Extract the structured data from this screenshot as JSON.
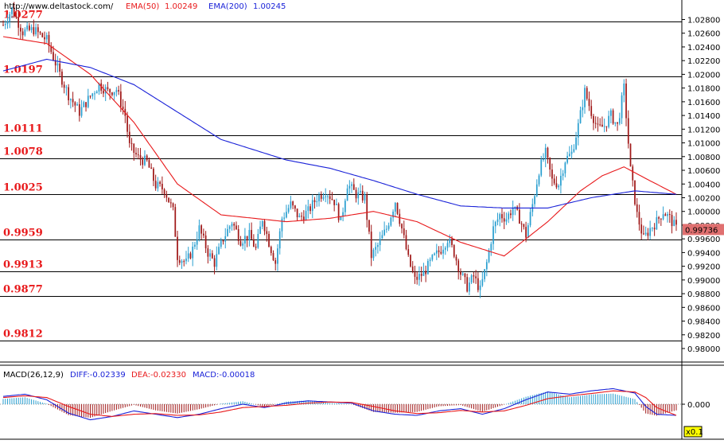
{
  "header": {
    "url": "http://www.deltastock.com/",
    "ema50_label": "EMA(50)",
    "ema50_value": "1.00249",
    "ema200_label": "EMA(200)",
    "ema200_value": "1.00245"
  },
  "macd_header": {
    "name": "MACD(26,12,9)",
    "diff": "DIFF:-0.02339",
    "dea": "DEA:-0.02330",
    "macd": "MACD:-0.00018"
  },
  "zoom_label": "x0.1",
  "colors": {
    "candle_up": "#2a9fd0",
    "candle_down": "#a01818",
    "ema50": "#e8191b",
    "ema200": "#1a22d8",
    "level_label": "#e8191b",
    "header_red": "#e8191b",
    "header_blue": "#1a22d8",
    "current_price_box": "#e07070"
  },
  "chart_data": {
    "type": "candlestick",
    "y_axis": {
      "min": 0.978,
      "max": 1.0295,
      "tick_labels": [
        "1.02800",
        "1.02600",
        "1.02400",
        "1.02200",
        "1.02000",
        "1.01800",
        "1.01600",
        "1.01400",
        "1.01200",
        "1.01000",
        "1.00800",
        "1.00600",
        "1.00400",
        "1.00200",
        "1.00000",
        "0.99800",
        "0.99600",
        "0.99400",
        "0.99200",
        "0.99000",
        "0.98800",
        "0.98600",
        "0.98400",
        "0.98200",
        "0.98000"
      ]
    },
    "current_price": "0.99736",
    "levels": [
      {
        "label": "1.0277",
        "value": 1.0277
      },
      {
        "label": "1.0197",
        "value": 1.0197
      },
      {
        "label": "1.0111",
        "value": 1.0111
      },
      {
        "label": "1.0078",
        "value": 1.0078
      },
      {
        "label": "1.0025",
        "value": 1.0025
      },
      {
        "label": "0.9959",
        "value": 0.9959
      },
      {
        "label": "0.9913",
        "value": 0.9913
      },
      {
        "label": "0.9877",
        "value": 0.9877
      },
      {
        "label": "0.9812",
        "value": 0.9812
      }
    ],
    "close_path": [
      [
        0,
        1.0272
      ],
      [
        4,
        1.0295
      ],
      [
        9,
        1.0262
      ],
      [
        14,
        1.0265
      ],
      [
        20,
        1.025
      ],
      [
        26,
        1.02
      ],
      [
        30,
        1.017
      ],
      [
        35,
        1.0145
      ],
      [
        40,
        1.0168
      ],
      [
        44,
        1.0185
      ],
      [
        48,
        1.0175
      ],
      [
        52,
        1.0178
      ],
      [
        56,
        1.014
      ],
      [
        58,
        1.0095
      ],
      [
        62,
        1.0078
      ],
      [
        66,
        1.0072
      ],
      [
        70,
        1.0038
      ],
      [
        74,
        1.0032
      ],
      [
        78,
        1.0
      ],
      [
        80,
        0.9935
      ],
      [
        84,
        0.9925
      ],
      [
        87,
        0.9945
      ],
      [
        90,
        0.9975
      ],
      [
        94,
        0.994
      ],
      [
        97,
        0.9925
      ],
      [
        101,
        0.996
      ],
      [
        105,
        0.9985
      ],
      [
        109,
        0.9958
      ],
      [
        113,
        0.9965
      ],
      [
        116,
        0.9945
      ],
      [
        119,
        0.999
      ],
      [
        122,
        0.9955
      ],
      [
        125,
        0.9925
      ],
      [
        128,
        0.999
      ],
      [
        132,
        1.001
      ],
      [
        136,
        0.999
      ],
      [
        140,
        1.0
      ],
      [
        144,
        1.002
      ],
      [
        148,
        1.003
      ],
      [
        152,
        1.0015
      ],
      [
        155,
        0.9985
      ],
      [
        158,
        1.004
      ],
      [
        162,
        1.0025
      ],
      [
        166,
        1.002
      ],
      [
        169,
        0.9935
      ],
      [
        172,
        0.995
      ],
      [
        176,
        0.9975
      ],
      [
        180,
        1.0015
      ],
      [
        183,
        0.9975
      ],
      [
        186,
        0.993
      ],
      [
        189,
        0.99
      ],
      [
        193,
        0.991
      ],
      [
        197,
        0.993
      ],
      [
        201,
        0.9945
      ],
      [
        204,
        0.996
      ],
      [
        207,
        0.994
      ],
      [
        210,
        0.991
      ],
      [
        213,
        0.989
      ],
      [
        216,
        0.9905
      ],
      [
        219,
        0.9885
      ],
      [
        222,
        0.9925
      ],
      [
        225,
        0.9975
      ],
      [
        228,
        0.9995
      ],
      [
        231,
        0.999
      ],
      [
        234,
        1.0005
      ],
      [
        237,
        0.999
      ],
      [
        240,
        0.9965
      ],
      [
        243,
        1.001
      ],
      [
        246,
        1.006
      ],
      [
        249,
        1.0085
      ],
      [
        252,
        1.0045
      ],
      [
        255,
        1.004
      ],
      [
        258,
        1.0075
      ],
      [
        261,
        1.0085
      ],
      [
        264,
        1.0125
      ],
      [
        267,
        1.0175
      ],
      [
        270,
        1.0145
      ],
      [
        273,
        1.012
      ],
      [
        276,
        1.0125
      ],
      [
        279,
        1.014
      ],
      [
        282,
        1.0125
      ],
      [
        285,
        1.018
      ],
      [
        288,
        1.006
      ],
      [
        291,
        0.9995
      ],
      [
        294,
        0.996
      ],
      [
        297,
        0.9975
      ],
      [
        300,
        0.9985
      ],
      [
        303,
        1.0
      ],
      [
        306,
        0.999
      ],
      [
        309,
        0.9975
      ]
    ],
    "series": [
      {
        "name": "EMA(50)",
        "values": [
          [
            0,
            1.0255
          ],
          [
            20,
            1.0245
          ],
          [
            40,
            1.02
          ],
          [
            60,
            1.013
          ],
          [
            80,
            1.004
          ],
          [
            100,
            0.9995
          ],
          [
            130,
            0.9985
          ],
          [
            150,
            0.999
          ],
          [
            170,
            1.0
          ],
          [
            190,
            0.9985
          ],
          [
            210,
            0.9955
          ],
          [
            230,
            0.9935
          ],
          [
            250,
            0.9985
          ],
          [
            265,
            1.003
          ],
          [
            275,
            1.0052
          ],
          [
            285,
            1.0065
          ],
          [
            295,
            1.0048
          ],
          [
            309,
            1.0025
          ]
        ]
      },
      {
        "name": "EMA(200)",
        "values": [
          [
            0,
            1.0205
          ],
          [
            20,
            1.0222
          ],
          [
            40,
            1.021
          ],
          [
            60,
            1.0185
          ],
          [
            80,
            1.0145
          ],
          [
            100,
            1.0105
          ],
          [
            130,
            1.0075
          ],
          [
            150,
            1.0063
          ],
          [
            170,
            1.0045
          ],
          [
            190,
            1.0025
          ],
          [
            210,
            1.0008
          ],
          [
            230,
            1.0005
          ],
          [
            250,
            1.0005
          ],
          [
            270,
            1.002
          ],
          [
            290,
            1.003
          ],
          [
            309,
            1.0025
          ]
        ]
      }
    ],
    "macd_panel": {
      "zero_label": "0.000",
      "diff_series": [
        [
          0,
          0.35
        ],
        [
          10,
          0.45
        ],
        [
          20,
          0.2
        ],
        [
          30,
          -0.4
        ],
        [
          40,
          -0.7
        ],
        [
          50,
          -0.55
        ],
        [
          60,
          -0.3
        ],
        [
          70,
          -0.45
        ],
        [
          80,
          -0.6
        ],
        [
          90,
          -0.45
        ],
        [
          100,
          -0.2
        ],
        [
          110,
          0.0
        ],
        [
          120,
          -0.15
        ],
        [
          130,
          0.05
        ],
        [
          140,
          0.15
        ],
        [
          150,
          0.1
        ],
        [
          160,
          0.05
        ],
        [
          170,
          -0.3
        ],
        [
          180,
          -0.45
        ],
        [
          190,
          -0.5
        ],
        [
          200,
          -0.3
        ],
        [
          210,
          -0.2
        ],
        [
          220,
          -0.45
        ],
        [
          230,
          -0.2
        ],
        [
          240,
          0.2
        ],
        [
          250,
          0.55
        ],
        [
          260,
          0.45
        ],
        [
          270,
          0.6
        ],
        [
          280,
          0.7
        ],
        [
          290,
          0.5
        ],
        [
          295,
          -0.1
        ],
        [
          300,
          -0.45
        ],
        [
          309,
          -0.5
        ]
      ],
      "dea_series": [
        [
          0,
          0.3
        ],
        [
          10,
          0.38
        ],
        [
          20,
          0.3
        ],
        [
          30,
          -0.1
        ],
        [
          40,
          -0.45
        ],
        [
          50,
          -0.55
        ],
        [
          60,
          -0.45
        ],
        [
          70,
          -0.42
        ],
        [
          80,
          -0.5
        ],
        [
          90,
          -0.48
        ],
        [
          100,
          -0.35
        ],
        [
          110,
          -0.15
        ],
        [
          120,
          -0.1
        ],
        [
          130,
          -0.05
        ],
        [
          140,
          0.05
        ],
        [
          150,
          0.1
        ],
        [
          160,
          0.08
        ],
        [
          170,
          -0.1
        ],
        [
          180,
          -0.3
        ],
        [
          190,
          -0.42
        ],
        [
          200,
          -0.38
        ],
        [
          210,
          -0.28
        ],
        [
          220,
          -0.35
        ],
        [
          230,
          -0.3
        ],
        [
          240,
          -0.05
        ],
        [
          250,
          0.25
        ],
        [
          260,
          0.38
        ],
        [
          270,
          0.48
        ],
        [
          280,
          0.6
        ],
        [
          290,
          0.55
        ],
        [
          295,
          0.3
        ],
        [
          300,
          -0.15
        ],
        [
          309,
          -0.5
        ]
      ],
      "ylim": [
        -1.0,
        1.0
      ]
    }
  }
}
